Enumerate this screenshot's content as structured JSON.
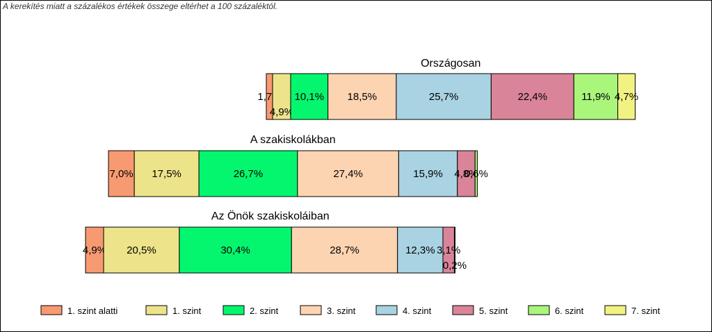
{
  "note": "A kerekítés miatt a százalékos értékek összege eltérhet a 100 százaléktól.",
  "chart_data": {
    "type": "bar",
    "orientation": "horizontal",
    "stacked": true,
    "title": "",
    "legend_position": "bottom",
    "grid": false,
    "levels": [
      {
        "name": "1. szint alatti",
        "color": "#F79A71"
      },
      {
        "name": "1. szint",
        "color": "#EDE38A"
      },
      {
        "name": "2. szint",
        "color": "#04F66E"
      },
      {
        "name": "3. szint",
        "color": "#FDD4B2"
      },
      {
        "name": "4. szint",
        "color": "#A9D3E2"
      },
      {
        "name": "5. szint",
        "color": "#D98498"
      },
      {
        "name": "6. szint",
        "color": "#A9F67B"
      },
      {
        "name": "7. szint",
        "color": "#F2F283"
      }
    ],
    "groups": [
      {
        "name": "Országosan",
        "values": [
          1.7,
          4.9,
          10.1,
          18.5,
          25.7,
          22.4,
          11.9,
          4.7
        ],
        "labels": [
          "1,7%",
          "4,9%",
          "10,1%",
          "18,5%",
          "25,7%",
          "22,4%",
          "11,9%",
          "4,7%"
        ]
      },
      {
        "name": "A szakiskolákban",
        "values": [
          7.0,
          17.5,
          26.7,
          27.4,
          15.9,
          4.8,
          0.6
        ],
        "labels": [
          "7,0%",
          "17,5%",
          "26,7%",
          "27,4%",
          "15,9%",
          "4,8%",
          "0,6%"
        ]
      },
      {
        "name": "Az Önök szakiskoláiban",
        "values": [
          4.9,
          20.5,
          30.4,
          28.7,
          12.3,
          3.1,
          0.2
        ],
        "labels": [
          "4,9%",
          "20,5%",
          "30,4%",
          "28,7%",
          "12,3%",
          "3,1%",
          "0,2%"
        ]
      }
    ]
  }
}
